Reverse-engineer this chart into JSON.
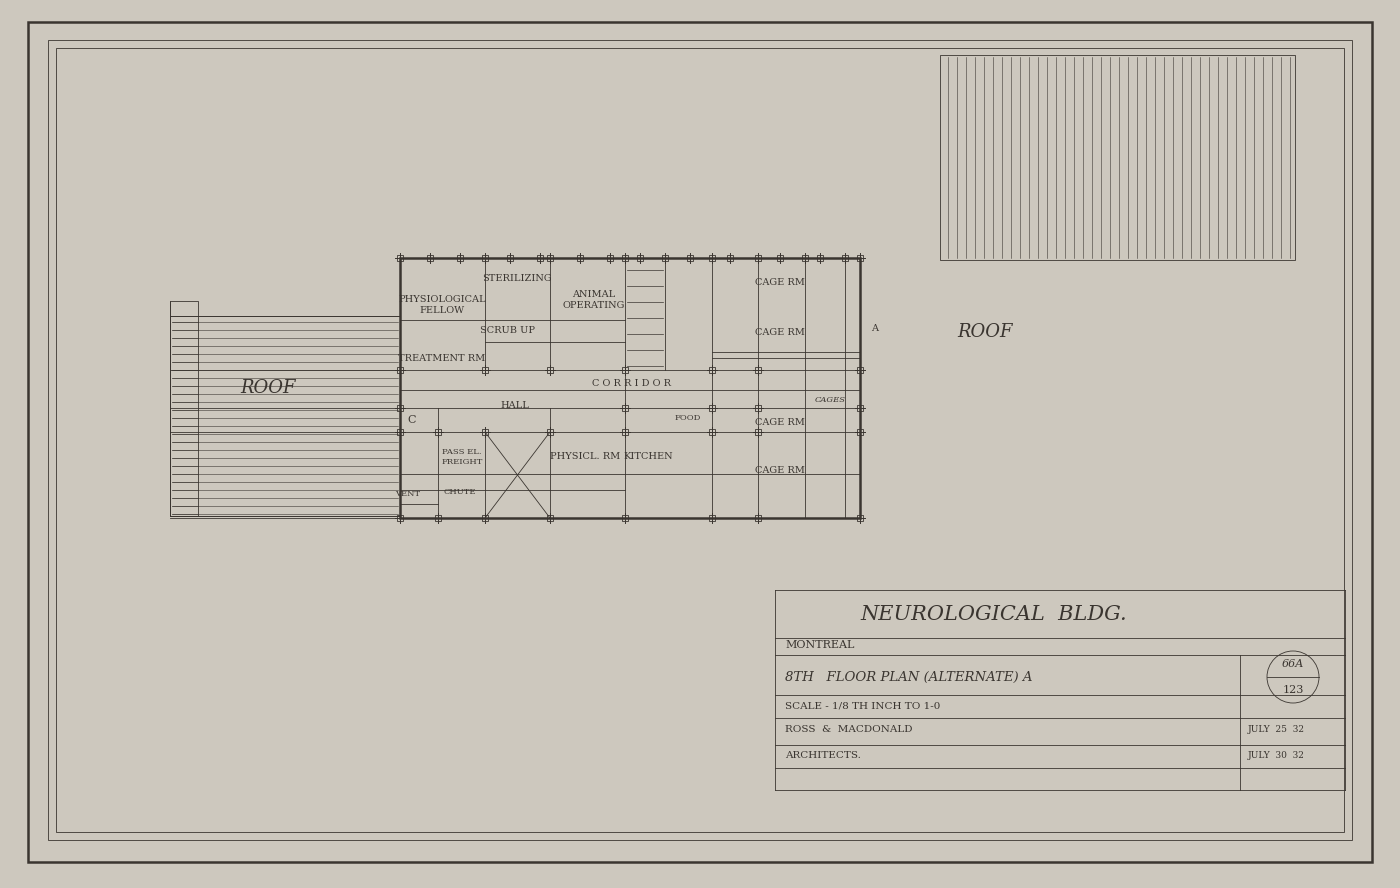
{
  "bg_color": "#cdc8be",
  "paper_color": "#e4ddd2",
  "line_color": "#3a3530",
  "title_block": {
    "main_title": "NEUROLOGICAL  BLDG.",
    "subtitle1": "MONTREAL",
    "subtitle2": "8TH   FLOOR PLAN (ALTERNATE) A",
    "num_label": "66A",
    "num_label2": "123",
    "subtitle3": "SCALE - 1/8 TH INCH TO 1-0",
    "subtitle4": "ROSS  &  MACDONALD",
    "subtitle5": "ARCHITECTS.",
    "date1": "JULY  25  32",
    "date2": "JULY  30  32"
  },
  "outer_border": [
    28,
    22,
    1344,
    840
  ],
  "inner_border1": [
    48,
    40,
    1304,
    800
  ],
  "inner_border2": [
    56,
    48,
    1288,
    784
  ]
}
